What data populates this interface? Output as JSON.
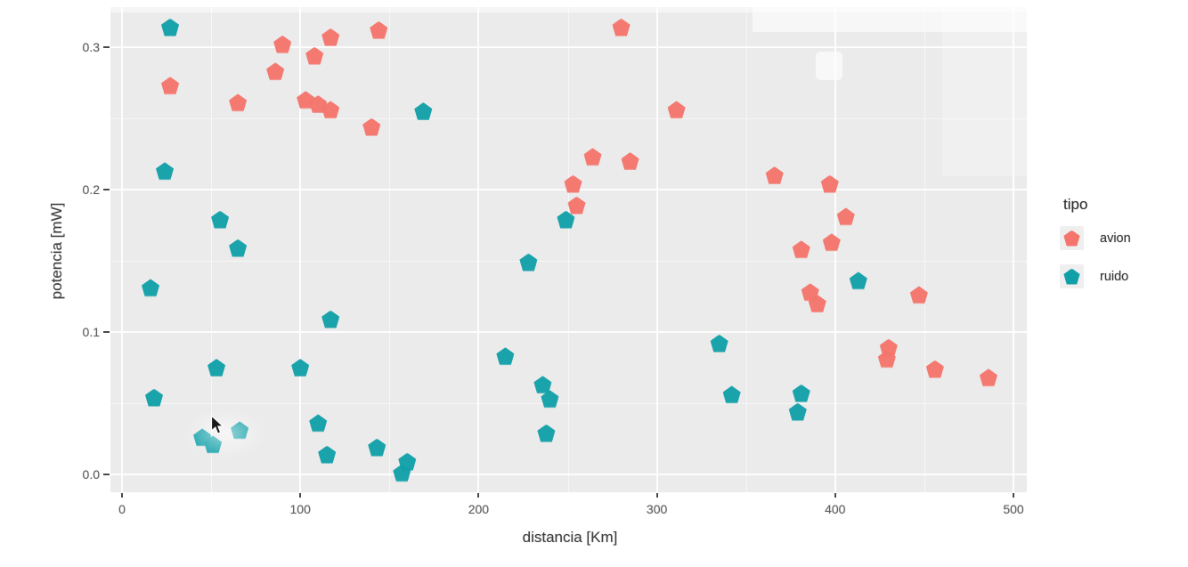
{
  "page": {
    "background": "#ffffff"
  },
  "chart_data": {
    "type": "scatter",
    "title": "",
    "xlabel": "distancia [Km]",
    "ylabel": "potencia [mW]",
    "x_ticks": {
      "values": [
        0,
        100,
        200,
        300,
        400,
        500
      ],
      "labels": [
        "0",
        "100",
        "200",
        "300",
        "400",
        "500"
      ]
    },
    "y_ticks": {
      "values": [
        0.0,
        0.1,
        0.2,
        0.3
      ],
      "labels": [
        "0.0",
        "0.1",
        "0.2",
        "0.3"
      ]
    },
    "x_minor_ticks": [
      50,
      150,
      250,
      350,
      450
    ],
    "y_minor_ticks": [
      0.05,
      0.15,
      0.25
    ],
    "xlim": [
      -13,
      508
    ],
    "ylim": [
      -0.012,
      0.328
    ],
    "grid": true,
    "panel_bg": "#ebebeb",
    "gridline_color": "#ffffff",
    "legend": {
      "title": "tipo",
      "position": "right"
    },
    "series": [
      {
        "name": "avion",
        "color": "#f4756c",
        "marker": "pentagon",
        "points": [
          [
            27,
            0.273
          ],
          [
            65,
            0.261
          ],
          [
            90,
            0.302
          ],
          [
            86,
            0.283
          ],
          [
            108,
            0.294
          ],
          [
            117,
            0.307
          ],
          [
            103,
            0.263
          ],
          [
            110,
            0.26
          ],
          [
            117,
            0.256
          ],
          [
            144,
            0.312
          ],
          [
            140,
            0.244
          ],
          [
            280,
            0.314
          ],
          [
            311,
            0.256
          ],
          [
            264,
            0.223
          ],
          [
            285,
            0.22
          ],
          [
            253,
            0.204
          ],
          [
            255,
            0.189
          ],
          [
            366,
            0.21
          ],
          [
            397,
            0.204
          ],
          [
            406,
            0.181
          ],
          [
            398,
            0.163
          ],
          [
            381,
            0.158
          ],
          [
            386,
            0.128
          ],
          [
            390,
            0.12
          ],
          [
            447,
            0.126
          ],
          [
            430,
            0.089
          ],
          [
            429,
            0.081
          ],
          [
            456,
            0.074
          ],
          [
            486,
            0.068
          ]
        ]
      },
      {
        "name": "ruido",
        "color": "#12a0a8",
        "marker": "pentagon",
        "points": [
          [
            27,
            0.314
          ],
          [
            24,
            0.213
          ],
          [
            169,
            0.255
          ],
          [
            55,
            0.179
          ],
          [
            65,
            0.159
          ],
          [
            16,
            0.131
          ],
          [
            117,
            0.109
          ],
          [
            53,
            0.075
          ],
          [
            100,
            0.075
          ],
          [
            18,
            0.054
          ],
          [
            45,
            0.026
          ],
          [
            51,
            0.021
          ],
          [
            66,
            0.031
          ],
          [
            110,
            0.036
          ],
          [
            115,
            0.014
          ],
          [
            143,
            0.019
          ],
          [
            160,
            0.009
          ],
          [
            157,
            0.001
          ],
          [
            249,
            0.179
          ],
          [
            228,
            0.149
          ],
          [
            215,
            0.083
          ],
          [
            236,
            0.063
          ],
          [
            240,
            0.053
          ],
          [
            238,
            0.029
          ],
          [
            335,
            0.092
          ],
          [
            342,
            0.056
          ],
          [
            413,
            0.136
          ],
          [
            381,
            0.057
          ],
          [
            379,
            0.044
          ]
        ]
      }
    ]
  }
}
